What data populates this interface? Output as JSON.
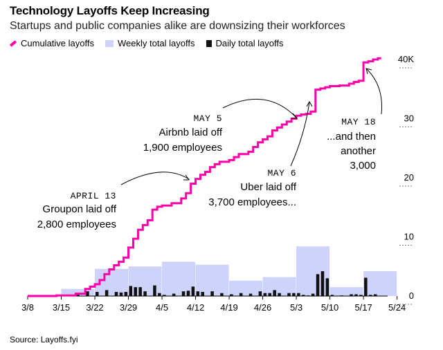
{
  "chart_data": {
    "type": "bar",
    "title": "Technology Layoffs Keep Increasing",
    "subtitle": "Startups and public companies alike are downsizing their workforces",
    "source": "Source: Layoffs.fyi",
    "legend": {
      "position": "top-left",
      "items": [
        {
          "label": "Cumulative layoffs",
          "color": "#ff00a8"
        },
        {
          "label": "Weekly total layoffs",
          "color": "#cdd3fb"
        },
        {
          "label": "Daily total layoffs",
          "color": "#111111"
        }
      ]
    },
    "x_ticks": [
      "3/8",
      "3/15",
      "3/22",
      "3/29",
      "4/5",
      "4/12",
      "4/19",
      "4/26",
      "5/3",
      "5/10",
      "5/17",
      "5/24"
    ],
    "y_ticks": [
      "0",
      "10",
      "20",
      "30",
      "40K"
    ],
    "ylim": [
      0,
      40000
    ],
    "xlim_days": [
      0,
      77
    ],
    "grid": false,
    "series": [
      {
        "name": "Cumulative layoffs",
        "type": "step-line",
        "x_days": [
          0,
          6,
          10,
          12,
          13,
          14,
          15,
          16,
          17,
          18,
          19,
          20,
          21,
          22,
          23,
          24,
          25,
          26,
          27,
          28,
          30,
          32,
          33,
          34,
          35,
          36,
          37,
          38,
          39,
          40,
          42,
          43,
          44,
          46,
          47,
          48,
          49,
          50,
          51,
          52,
          53,
          54,
          55,
          56,
          57,
          58,
          59,
          60,
          61,
          62,
          63,
          65,
          67,
          68,
          69,
          70,
          71,
          72,
          73
        ],
        "values": [
          0,
          100,
          400,
          1200,
          1600,
          2000,
          2700,
          3700,
          4500,
          5200,
          5800,
          6500,
          8200,
          9700,
          11200,
          12000,
          12800,
          14600,
          15100,
          15300,
          15700,
          16500,
          17400,
          19000,
          19800,
          20500,
          21000,
          21800,
          22300,
          22700,
          23000,
          23500,
          24000,
          24400,
          25200,
          26000,
          26500,
          27000,
          28000,
          28500,
          29000,
          29500,
          30000,
          30500,
          30700,
          30800,
          31200,
          34900,
          35100,
          35300,
          35500,
          35600,
          35900,
          36200,
          36400,
          39500,
          39700,
          40000,
          40200
        ]
      },
      {
        "name": "Weekly total layoffs",
        "type": "weekly-bar",
        "start_days": [
          0,
          7,
          14,
          21,
          28,
          35,
          42,
          49,
          56,
          63,
          70
        ],
        "values": [
          250,
          1200,
          4600,
          5000,
          5800,
          5300,
          2600,
          3200,
          8400,
          1500,
          4200
        ]
      },
      {
        "name": "Daily total layoffs",
        "type": "daily-bar",
        "x_days": [
          6,
          10,
          12,
          14,
          16,
          18,
          19,
          20,
          21,
          22,
          23,
          24,
          26,
          27,
          28,
          30,
          32,
          33,
          34,
          35,
          36,
          38,
          40,
          42,
          44,
          46,
          48,
          49,
          50,
          51,
          52,
          54,
          55,
          56,
          57,
          58,
          59,
          60,
          61,
          62,
          63,
          65,
          67,
          68,
          69,
          70,
          71,
          72
        ],
        "values": [
          100,
          300,
          800,
          700,
          1000,
          700,
          600,
          700,
          1700,
          1500,
          1500,
          800,
          1800,
          500,
          200,
          400,
          800,
          900,
          1600,
          800,
          700,
          800,
          500,
          300,
          500,
          400,
          800,
          500,
          500,
          1000,
          500,
          500,
          500,
          500,
          200,
          100,
          400,
          3700,
          4200,
          3000,
          200,
          100,
          300,
          300,
          200,
          3100,
          200,
          300
        ]
      }
    ],
    "annotations": [
      {
        "date": "APRIL 13",
        "lines": [
          "Groupon laid off",
          "2,800 employees"
        ]
      },
      {
        "date": "MAY 5",
        "lines": [
          "Airbnb laid off",
          "1,900 employees"
        ]
      },
      {
        "date": "MAY 6",
        "lines": [
          "Uber laid off",
          "3,700 employees..."
        ]
      },
      {
        "date": "MAY 18",
        "lines": [
          "...and then",
          "another",
          "3,000"
        ]
      }
    ]
  }
}
